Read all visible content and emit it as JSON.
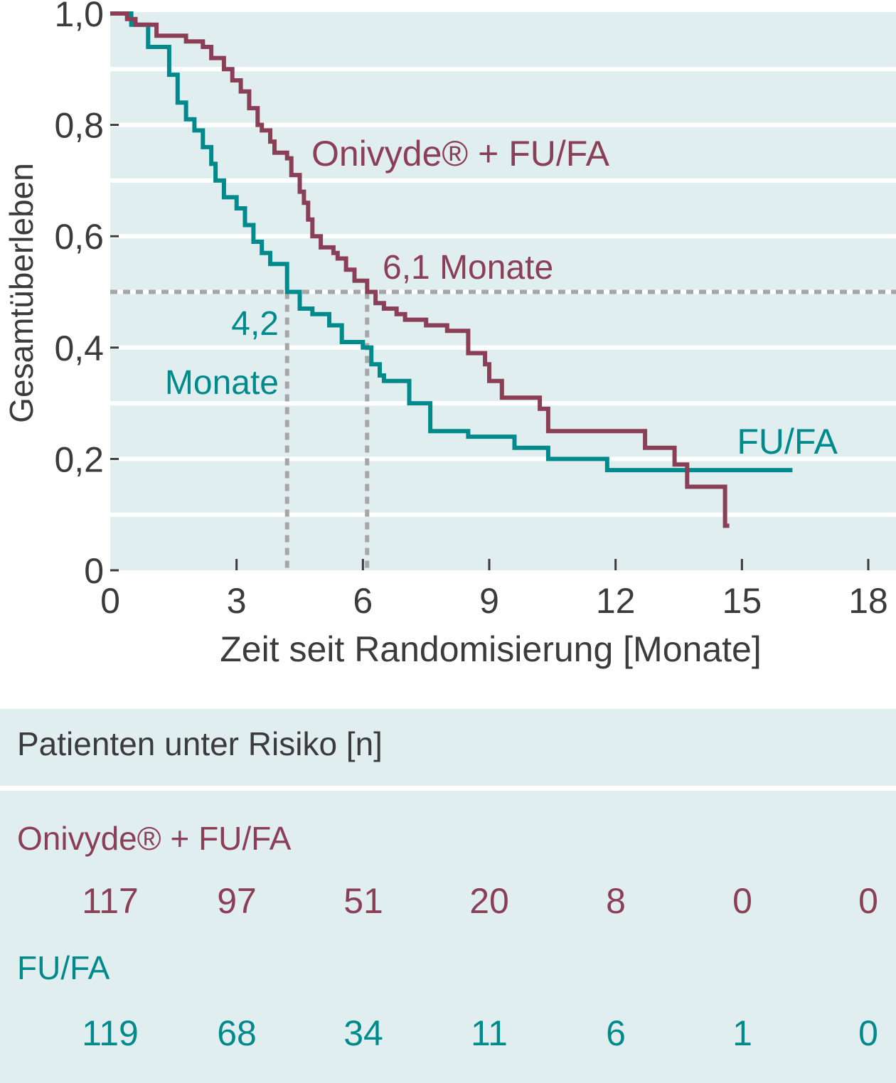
{
  "colors": {
    "onivyde": "#8b3f56",
    "fufa": "#008a8c",
    "plot_bg": "#e1eef0",
    "grid": "#ffffff",
    "reference": "#a6a6a6",
    "text": "#3b3b3b"
  },
  "chart_data": {
    "type": "line",
    "subtype": "kaplan-meier step",
    "xlabel": "Zeit seit Randomisierung [Monate]",
    "ylabel": "Gesamtüberleben",
    "xlim": [
      0,
      18
    ],
    "ylim": [
      0,
      1
    ],
    "x_ticks": [
      0,
      3,
      6,
      9,
      12,
      15,
      18
    ],
    "x_tick_labels": [
      "0",
      "3",
      "6",
      "9",
      "12",
      "15",
      "18"
    ],
    "y_ticks": [
      0,
      0.2,
      0.4,
      0.6,
      0.8,
      1.0
    ],
    "y_tick_labels": [
      "0",
      "0,2",
      "0,4",
      "0,6",
      "0,8",
      "1,0"
    ],
    "grid": "horizontal",
    "reference_line": {
      "y": 0.5,
      "style": "dotted"
    },
    "medians": [
      {
        "series": "Onivyde® + FU/FA",
        "x": 6.1,
        "label": "6,1 Monate"
      },
      {
        "series": "FU/FA",
        "x": 4.2,
        "label_line1": "4,2",
        "label_line2": "Monate"
      }
    ],
    "series": [
      {
        "name": "Onivyde® + FU/FA",
        "color": "#8b3f56",
        "points": [
          [
            0,
            1.0
          ],
          [
            0.4,
            1.0
          ],
          [
            0.4,
            0.99
          ],
          [
            0.6,
            0.99
          ],
          [
            0.6,
            0.98
          ],
          [
            1.1,
            0.98
          ],
          [
            1.1,
            0.96
          ],
          [
            1.8,
            0.96
          ],
          [
            1.8,
            0.95
          ],
          [
            2.2,
            0.95
          ],
          [
            2.2,
            0.94
          ],
          [
            2.4,
            0.94
          ],
          [
            2.4,
            0.92
          ],
          [
            2.7,
            0.92
          ],
          [
            2.7,
            0.9
          ],
          [
            2.9,
            0.9
          ],
          [
            2.9,
            0.88
          ],
          [
            3.1,
            0.88
          ],
          [
            3.1,
            0.86
          ],
          [
            3.3,
            0.86
          ],
          [
            3.3,
            0.83
          ],
          [
            3.5,
            0.83
          ],
          [
            3.5,
            0.8
          ],
          [
            3.6,
            0.8
          ],
          [
            3.6,
            0.79
          ],
          [
            3.8,
            0.79
          ],
          [
            3.8,
            0.77
          ],
          [
            3.9,
            0.77
          ],
          [
            3.9,
            0.75
          ],
          [
            4.2,
            0.75
          ],
          [
            4.2,
            0.74
          ],
          [
            4.3,
            0.74
          ],
          [
            4.3,
            0.71
          ],
          [
            4.5,
            0.71
          ],
          [
            4.5,
            0.68
          ],
          [
            4.6,
            0.68
          ],
          [
            4.6,
            0.66
          ],
          [
            4.7,
            0.66
          ],
          [
            4.7,
            0.63
          ],
          [
            4.8,
            0.63
          ],
          [
            4.8,
            0.6
          ],
          [
            5.0,
            0.6
          ],
          [
            5.0,
            0.58
          ],
          [
            5.3,
            0.58
          ],
          [
            5.3,
            0.57
          ],
          [
            5.4,
            0.57
          ],
          [
            5.4,
            0.56
          ],
          [
            5.6,
            0.56
          ],
          [
            5.6,
            0.54
          ],
          [
            5.8,
            0.54
          ],
          [
            5.8,
            0.52
          ],
          [
            6.1,
            0.52
          ],
          [
            6.1,
            0.5
          ],
          [
            6.3,
            0.5
          ],
          [
            6.3,
            0.48
          ],
          [
            6.5,
            0.48
          ],
          [
            6.5,
            0.47
          ],
          [
            6.8,
            0.47
          ],
          [
            6.8,
            0.46
          ],
          [
            7.0,
            0.46
          ],
          [
            7.0,
            0.45
          ],
          [
            7.5,
            0.45
          ],
          [
            7.5,
            0.44
          ],
          [
            8.0,
            0.44
          ],
          [
            8.0,
            0.43
          ],
          [
            8.5,
            0.43
          ],
          [
            8.5,
            0.39
          ],
          [
            8.9,
            0.39
          ],
          [
            8.9,
            0.37
          ],
          [
            9.0,
            0.37
          ],
          [
            9.0,
            0.34
          ],
          [
            9.3,
            0.34
          ],
          [
            9.3,
            0.31
          ],
          [
            10.2,
            0.31
          ],
          [
            10.2,
            0.29
          ],
          [
            10.4,
            0.29
          ],
          [
            10.4,
            0.25
          ],
          [
            12.7,
            0.25
          ],
          [
            12.7,
            0.22
          ],
          [
            13.4,
            0.22
          ],
          [
            13.4,
            0.19
          ],
          [
            13.7,
            0.19
          ],
          [
            13.7,
            0.15
          ],
          [
            14.6,
            0.15
          ],
          [
            14.6,
            0.08
          ],
          [
            14.7,
            0.08
          ]
        ]
      },
      {
        "name": "FU/FA",
        "color": "#008a8c",
        "points": [
          [
            0,
            1.0
          ],
          [
            0.5,
            1.0
          ],
          [
            0.5,
            0.98
          ],
          [
            0.9,
            0.98
          ],
          [
            0.9,
            0.94
          ],
          [
            1.4,
            0.94
          ],
          [
            1.4,
            0.89
          ],
          [
            1.6,
            0.89
          ],
          [
            1.6,
            0.84
          ],
          [
            1.8,
            0.84
          ],
          [
            1.8,
            0.81
          ],
          [
            2.0,
            0.81
          ],
          [
            2.0,
            0.79
          ],
          [
            2.2,
            0.79
          ],
          [
            2.2,
            0.76
          ],
          [
            2.4,
            0.76
          ],
          [
            2.4,
            0.73
          ],
          [
            2.5,
            0.73
          ],
          [
            2.5,
            0.7
          ],
          [
            2.7,
            0.7
          ],
          [
            2.7,
            0.67
          ],
          [
            3.0,
            0.67
          ],
          [
            3.0,
            0.65
          ],
          [
            3.2,
            0.65
          ],
          [
            3.2,
            0.62
          ],
          [
            3.4,
            0.62
          ],
          [
            3.4,
            0.59
          ],
          [
            3.6,
            0.59
          ],
          [
            3.6,
            0.57
          ],
          [
            3.8,
            0.57
          ],
          [
            3.8,
            0.55
          ],
          [
            4.2,
            0.55
          ],
          [
            4.2,
            0.5
          ],
          [
            4.5,
            0.5
          ],
          [
            4.5,
            0.47
          ],
          [
            4.8,
            0.47
          ],
          [
            4.8,
            0.46
          ],
          [
            5.2,
            0.46
          ],
          [
            5.2,
            0.44
          ],
          [
            5.5,
            0.44
          ],
          [
            5.5,
            0.41
          ],
          [
            6.0,
            0.41
          ],
          [
            6.0,
            0.4
          ],
          [
            6.2,
            0.4
          ],
          [
            6.2,
            0.37
          ],
          [
            6.4,
            0.37
          ],
          [
            6.4,
            0.35
          ],
          [
            6.5,
            0.35
          ],
          [
            6.5,
            0.34
          ],
          [
            7.1,
            0.34
          ],
          [
            7.1,
            0.3
          ],
          [
            7.6,
            0.3
          ],
          [
            7.6,
            0.25
          ],
          [
            8.5,
            0.25
          ],
          [
            8.5,
            0.24
          ],
          [
            9.6,
            0.24
          ],
          [
            9.6,
            0.22
          ],
          [
            10.4,
            0.22
          ],
          [
            10.4,
            0.2
          ],
          [
            11.8,
            0.2
          ],
          [
            11.8,
            0.18
          ],
          [
            16.2,
            0.18
          ]
        ]
      }
    ],
    "series_labels": [
      {
        "series": "Onivyde® + FU/FA",
        "text": "Onivyde® + FU/FA"
      },
      {
        "series": "FU/FA",
        "text": "FU/FA"
      }
    ]
  },
  "risk_table": {
    "title": "Patienten unter Risiko [n]",
    "x_months": [
      0,
      3,
      6,
      9,
      12,
      15,
      18
    ],
    "rows": [
      {
        "label": "Onivyde® + FU/FA",
        "values": [
          "117",
          "97",
          "51",
          "20",
          "8",
          "0",
          "0"
        ]
      },
      {
        "label": "FU/FA",
        "values": [
          "119",
          "68",
          "34",
          "11",
          "6",
          "1",
          "0"
        ]
      }
    ]
  }
}
